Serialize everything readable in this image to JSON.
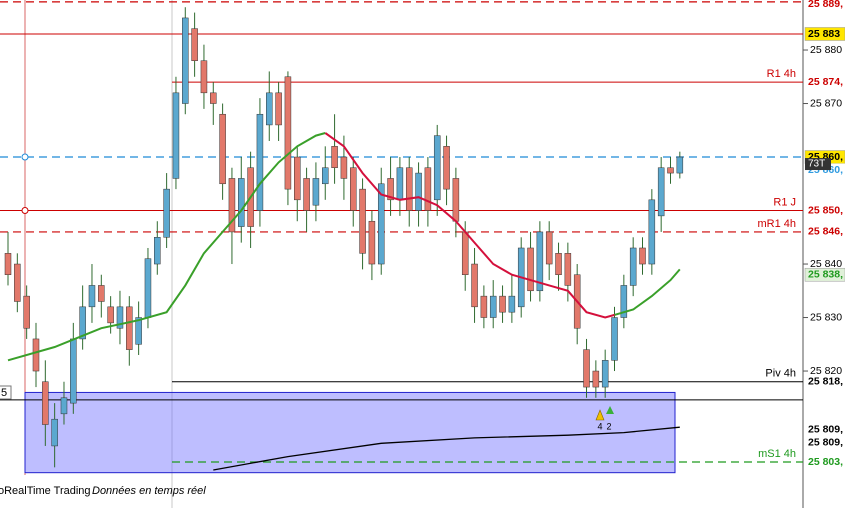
{
  "chart_data": {
    "type": "candlestick",
    "x": [
      0,
      1,
      2,
      3,
      4,
      5,
      6,
      7,
      8,
      9,
      10,
      11,
      12,
      13,
      14,
      15,
      16,
      17,
      18,
      19,
      20,
      21,
      22,
      23,
      24,
      25,
      26,
      27,
      28,
      29,
      30,
      31,
      32,
      33,
      34,
      35,
      36,
      37,
      38,
      39,
      40,
      41,
      42,
      43,
      44,
      45,
      46,
      47,
      48,
      49,
      50,
      51,
      52,
      53,
      54,
      55,
      56,
      57,
      58,
      59,
      60,
      61,
      62,
      63,
      64,
      65,
      66,
      67,
      68,
      69,
      70,
      71,
      72
    ],
    "open": [
      25842,
      25840,
      25834,
      25826,
      25818,
      25806,
      25812,
      25814,
      25826,
      25832,
      25836,
      25832,
      25828,
      25832,
      25825,
      25830,
      25840,
      25845,
      25856,
      25870,
      25884,
      25878,
      25872,
      25868,
      25856,
      25847,
      25858,
      25850,
      25866,
      25872,
      25875,
      25860,
      25856,
      25851,
      25855,
      25862,
      25860,
      25858,
      25854,
      25848,
      25840,
      25856,
      25852,
      25858,
      25850,
      25858,
      25852,
      25862,
      25856,
      25846,
      25840,
      25834,
      25830,
      25834,
      25831,
      25832,
      25843,
      25835,
      25846,
      25842,
      25842,
      25838,
      25824,
      25820,
      25817,
      25822,
      25830,
      25836,
      25843,
      25840,
      25849,
      25858,
      25857
    ],
    "high": [
      25846,
      25842,
      25836,
      25829,
      25822,
      25814,
      25818,
      25829,
      25836,
      25840,
      25838,
      25834,
      25835,
      25834,
      25833,
      25843,
      25848,
      25857,
      25875,
      25888,
      25887,
      25881,
      25874,
      25870,
      25858,
      25860,
      25861,
      25871,
      25876,
      25874,
      25876,
      25862,
      25858,
      25859,
      25862,
      25868,
      25864,
      25860,
      25856,
      25850,
      25858,
      25860,
      25860,
      25860,
      25859,
      25860,
      25866,
      25864,
      25858,
      25848,
      25843,
      25836,
      25837,
      25836,
      25838,
      25845,
      25846,
      25848,
      25848,
      25844,
      25844,
      25840,
      25826,
      25822,
      25824,
      25832,
      25838,
      25845,
      25845,
      25854,
      25860,
      25860,
      25861
    ],
    "low": [
      25836,
      25831,
      25826,
      25817,
      25806,
      25802,
      25810,
      25812,
      25824,
      25829,
      25830,
      25827,
      25825,
      25821,
      25823,
      25828,
      25838,
      25843,
      25854,
      25868,
      25875,
      25869,
      25866,
      25852,
      25840,
      25844,
      25843,
      25847,
      25863,
      25863,
      25851,
      25848,
      25846,
      25848,
      25852,
      25855,
      25852,
      25847,
      25839,
      25837,
      25838,
      25849,
      25849,
      25847,
      25847,
      25847,
      25849,
      25851,
      25845,
      25835,
      25829,
      25828,
      25828,
      25829,
      25829,
      25830,
      25833,
      25833,
      25837,
      25835,
      25833,
      25825,
      25815,
      25815,
      25815,
      25820,
      25828,
      25834,
      25838,
      25838,
      25846,
      25855,
      25856
    ],
    "close": [
      25838,
      25833,
      25828,
      25820,
      25810,
      25811,
      25815,
      25826,
      25832,
      25836,
      25833,
      25829,
      25832,
      25824,
      25830,
      25841,
      25845,
      25854,
      25872,
      25886,
      25878,
      25872,
      25870,
      25855,
      25846,
      25856,
      25847,
      25868,
      25872,
      25866,
      25854,
      25852,
      25850,
      25856,
      25858,
      25858,
      25856,
      25850,
      25842,
      25840,
      25855,
      25852,
      25858,
      25850,
      25857,
      25850,
      25864,
      25854,
      25848,
      25838,
      25832,
      25830,
      25834,
      25831,
      25834,
      25843,
      25835,
      25846,
      25840,
      25838,
      25836,
      25828,
      25817,
      25817,
      25822,
      25830,
      25836,
      25843,
      25840,
      25852,
      25858,
      25857,
      25860
    ],
    "bull_color": "#5ba8cf",
    "bear_color": "#e2786a",
    "wick_color": "#2f6a2f",
    "series": [
      {
        "color": "#3aa02a",
        "x": [
          0,
          5,
          10,
          14,
          17,
          19,
          21,
          23,
          25,
          27,
          29,
          31,
          33,
          34,
          50,
          65,
          67,
          69,
          71,
          72
        ],
        "values": [
          25822,
          25824.5,
          25828,
          25829.5,
          25831,
          25836,
          25842,
          25846,
          25850,
          25855,
          25859,
          25862,
          25864,
          25864.5,
          null,
          25830.5,
          25831.5,
          25834,
          25837,
          25839
        ]
      },
      {
        "color": "#d4103c",
        "x": [
          34,
          36,
          38,
          40,
          42,
          44,
          46,
          48,
          50,
          52,
          54,
          56,
          58,
          60,
          62,
          64,
          65
        ],
        "values": [
          25864.5,
          25862,
          25857,
          25853,
          25852,
          25852.5,
          25851,
          25848,
          25844,
          25840,
          25838,
          25837,
          25836,
          25835,
          25831,
          25830,
          25830.5
        ]
      },
      {
        "color": "#000000",
        "x": [
          22,
          30,
          40,
          50,
          60,
          66,
          72
        ],
        "values": [
          25801.5,
          25804,
          25806.5,
          25807.5,
          25808,
          25808.5,
          25809.5
        ]
      }
    ],
    "zone": {
      "top": 25816,
      "bottom": 25801,
      "line": 25814.6
    },
    "levels": [
      {
        "value": 25889,
        "label": "25 889,",
        "color": "#cc0000",
        "dash": true,
        "extends_left": true
      },
      {
        "value": 25883,
        "label": "25 883",
        "color": "#cc0000",
        "dash": false,
        "extends_left": true,
        "label_bg": "#ffe600",
        "label_color": "#000000"
      },
      {
        "name": "R1 4h",
        "value": 25874,
        "label": "25 874,",
        "color": "#cc0000",
        "dash": false,
        "extends_left": false
      },
      {
        "value": 25860,
        "label": "25 860,",
        "color": "#1f8ad6",
        "dash": true,
        "extends_left": true,
        "label_bg": "#ffe600",
        "label_color": "#000000"
      },
      {
        "name": "R1 J",
        "value": 25850,
        "label": "25 850,",
        "color": "#cc0000",
        "dash": false,
        "extends_left": true
      },
      {
        "name": "mR1 4h",
        "value": 25846,
        "label": "25 846,",
        "color": "#cc0000",
        "dash": true,
        "extends_left": true
      },
      {
        "name": "Piv 4h",
        "value": 25818,
        "label": "25 818,",
        "color": "#000000",
        "dash": false,
        "extends_left": false
      },
      {
        "name": "mS1 4h",
        "value": 25803,
        "label": "25 803,",
        "color": "#1f9a1f",
        "dash": true,
        "extends_left": false
      }
    ],
    "axis_labels": [
      {
        "value": 25838,
        "label": "25 838,",
        "color": "#1f9a1f",
        "bg": "#dff0d8"
      },
      {
        "value": 25860,
        "label": "25 860,",
        "color": "#2f9be0",
        "bg": "#ffffff"
      },
      {
        "value": 25809,
        "label": "25 809,",
        "color": "#000000",
        "bg": "#ffffff"
      },
      {
        "value": 25809,
        "label": "25 809,",
        "color": "#000000",
        "bg": "#ffffff"
      }
    ],
    "timer": "73T",
    "alert_counts": [
      4,
      2
    ],
    "left_label": "5",
    "footer": [
      "oRealTime Trading",
      "Données en temps réel"
    ],
    "xlim": [
      -0.857,
      85.2
    ],
    "ylim": [
      25794.4,
      25889.35
    ],
    "yticks": [
      {
        "value": 25880,
        "label": "25 880"
      },
      {
        "value": 25870,
        "label": "25 870"
      },
      {
        "value": 25840,
        "label": "25 840"
      },
      {
        "value": 25830,
        "label": "25 830"
      },
      {
        "value": 25820,
        "label": "25 820"
      }
    ]
  }
}
